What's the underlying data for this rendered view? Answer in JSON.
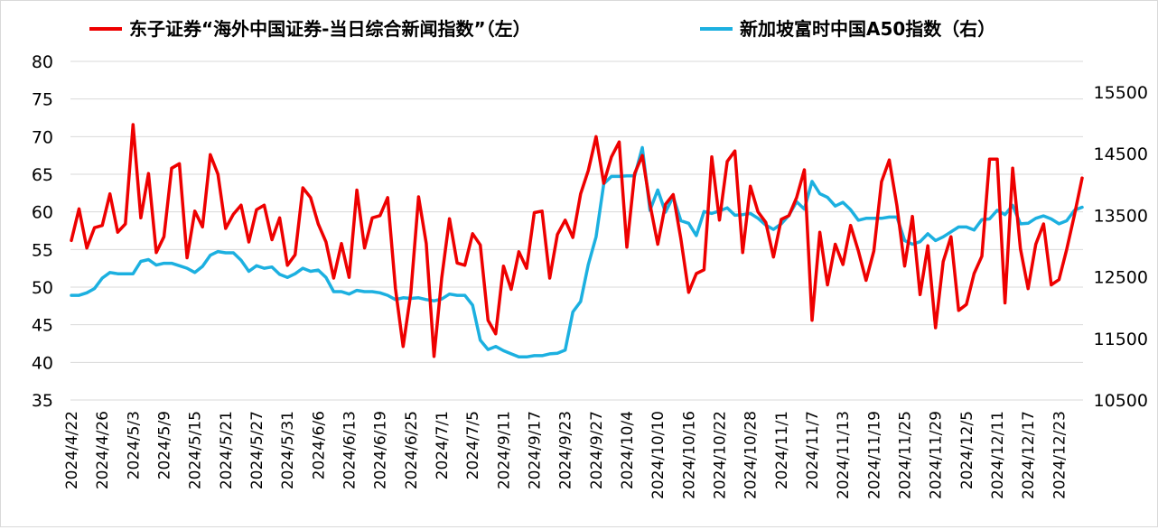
{
  "chart_data": {
    "type": "line",
    "grid": true,
    "legend_position": "top",
    "series": [
      {
        "name": "东子证券“海外中国证券-当日综合新闻指数”（左）",
        "axis": "left",
        "color": "#ee0000",
        "values": [
          56.2,
          60.4,
          55.2,
          57.9,
          58.2,
          62.4,
          57.3,
          58.4,
          71.6,
          59.2,
          65.1,
          54.6,
          56.7,
          65.8,
          66.4,
          53.9,
          60.1,
          58.0,
          67.6,
          65.0,
          57.8,
          59.7,
          60.9,
          56.0,
          60.3,
          60.9,
          56.3,
          59.2,
          52.9,
          54.3,
          63.2,
          61.9,
          58.4,
          56.0,
          51.2,
          55.8,
          51.3,
          62.9,
          55.2,
          59.2,
          59.5,
          61.9,
          49.8,
          42.1,
          49.2,
          62.0,
          55.8,
          40.8,
          51.2,
          59.1,
          53.2,
          52.9,
          57.1,
          55.6,
          45.6,
          43.8,
          52.8,
          49.7,
          54.7,
          52.5,
          59.9,
          60.1,
          51.2,
          57.0,
          58.9,
          56.6,
          62.4,
          65.5,
          70.0,
          63.8,
          67.3,
          69.3,
          55.3,
          65.1,
          67.5,
          61.0,
          55.7,
          61.0,
          62.3,
          56.4,
          49.3,
          51.8,
          52.3,
          67.3,
          58.9,
          66.7,
          68.1,
          54.6,
          63.4,
          60.0,
          58.6,
          54.0,
          59.0,
          59.5,
          61.9,
          65.6,
          45.6,
          57.3,
          50.3,
          55.7,
          53.0,
          58.2,
          54.8,
          50.9,
          54.8,
          64.0,
          66.9,
          60.8,
          52.8,
          59.4,
          49.0,
          55.5,
          44.6,
          53.4,
          56.7,
          46.9,
          47.7,
          51.8,
          54.1,
          67.0,
          67.0,
          47.9,
          65.8,
          55.1,
          49.8,
          55.7,
          58.4,
          50.3,
          51.0,
          55.0,
          59.6,
          64.5
        ]
      },
      {
        "name": "新加坡富时中国A50指数（右）",
        "axis": "right",
        "color": "#1cb0e0",
        "values": [
          12200,
          12200,
          12240,
          12310,
          12480,
          12570,
          12550,
          12550,
          12550,
          12750,
          12780,
          12690,
          12720,
          12720,
          12680,
          12640,
          12570,
          12670,
          12850,
          12910,
          12890,
          12890,
          12770,
          12590,
          12680,
          12640,
          12660,
          12540,
          12490,
          12550,
          12640,
          12590,
          12610,
          12490,
          12260,
          12260,
          12220,
          12280,
          12260,
          12260,
          12240,
          12200,
          12130,
          12160,
          12150,
          12160,
          12130,
          12110,
          12140,
          12220,
          12200,
          12200,
          12040,
          11470,
          11320,
          11370,
          11300,
          11250,
          11200,
          11200,
          11220,
          11220,
          11250,
          11260,
          11310,
          11930,
          12100,
          12700,
          13150,
          14010,
          14130,
          14130,
          14140,
          14140,
          14600,
          13580,
          13910,
          13550,
          13800,
          13410,
          13370,
          13170,
          13560,
          13530,
          13570,
          13620,
          13500,
          13510,
          13530,
          13450,
          13340,
          13270,
          13360,
          13500,
          13720,
          13600,
          14050,
          13850,
          13790,
          13650,
          13710,
          13590,
          13420,
          13450,
          13450,
          13450,
          13470,
          13470,
          13090,
          13030,
          13070,
          13200,
          13090,
          13150,
          13230,
          13310,
          13310,
          13260,
          13430,
          13440,
          13580,
          13510,
          13660,
          13360,
          13370,
          13450,
          13490,
          13440,
          13360,
          13410,
          13580,
          13630
        ]
      }
    ],
    "x_tick_labels": [
      "2024/4/22",
      "2024/4/26",
      "2024/5/3",
      "2024/5/9",
      "2024/5/15",
      "2024/5/21",
      "2024/5/27",
      "2024/5/31",
      "2024/6/6",
      "2024/6/13",
      "2024/6/19",
      "2024/6/25",
      "2024/7/1",
      "2024/7/5",
      "2024/9/11",
      "2024/9/17",
      "2024/9/23",
      "2024/9/27",
      "2024/10/4",
      "2024/10/10",
      "2024/10/16",
      "2024/10/22",
      "2024/10/28",
      "2024/11/1",
      "2024/11/7",
      "2024/11/13",
      "2024/11/19",
      "2024/11/25",
      "2024/11/29",
      "2024/12/5",
      "2024/12/11",
      "2024/12/17",
      "2024/12/23"
    ],
    "x_tick_every": 4,
    "y_left": {
      "min": 35,
      "max": 80,
      "step": 5,
      "ticks": [
        "80",
        "75",
        "70",
        "65",
        "60",
        "55",
        "50",
        "45",
        "40",
        "35"
      ]
    },
    "y_right": {
      "min": 10500,
      "max": 15500,
      "ticks": [
        "15500",
        "14500",
        "13500",
        "12500",
        "11500",
        "10500"
      ]
    }
  }
}
